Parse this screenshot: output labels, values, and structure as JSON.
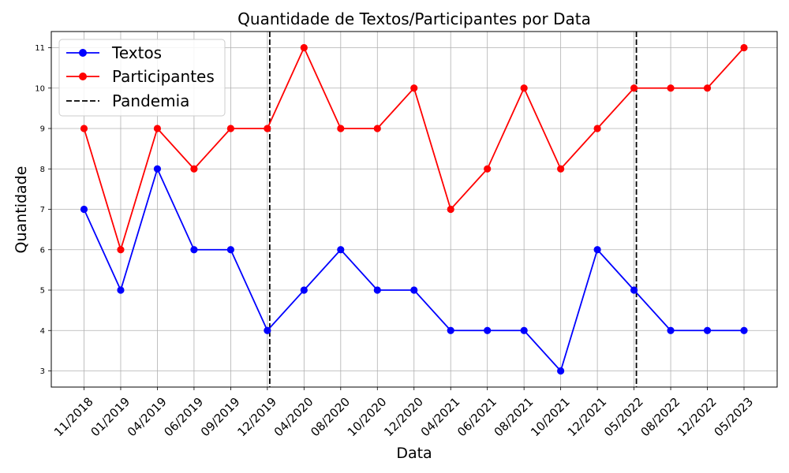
{
  "chart_data": {
    "type": "line",
    "title": "Quantidade de Textos/Participantes por Data",
    "xlabel": "Data",
    "ylabel": "Quantidade",
    "categories": [
      "11/2018",
      "01/2019",
      "04/2019",
      "06/2019",
      "09/2019",
      "12/2019",
      "04/2020",
      "08/2020",
      "10/2020",
      "12/2020",
      "04/2021",
      "06/2021",
      "08/2021",
      "10/2021",
      "12/2021",
      "05/2022",
      "08/2022",
      "12/2022",
      "05/2023"
    ],
    "yticks": [
      3,
      4,
      5,
      6,
      7,
      8,
      9,
      10,
      11
    ],
    "ylim": [
      2.6,
      11.4
    ],
    "grid": true,
    "legend_position": "top-left",
    "series": [
      {
        "name": "Textos",
        "color": "#0000ff",
        "marker": "circle",
        "values": [
          7,
          5,
          8,
          6,
          6,
          4,
          5,
          6,
          5,
          5,
          4,
          4,
          4,
          3,
          6,
          5,
          4,
          4,
          4
        ]
      },
      {
        "name": "Participantes",
        "color": "#ff0000",
        "marker": "circle",
        "values": [
          9,
          6,
          9,
          8,
          9,
          9,
          11,
          9,
          9,
          10,
          7,
          8,
          10,
          8,
          9,
          10,
          10,
          10,
          11
        ]
      }
    ],
    "vlines": {
      "name": "Pandemia",
      "color": "#000000",
      "style": "dashed",
      "positions": [
        "12/2019",
        "05/2022"
      ]
    }
  }
}
